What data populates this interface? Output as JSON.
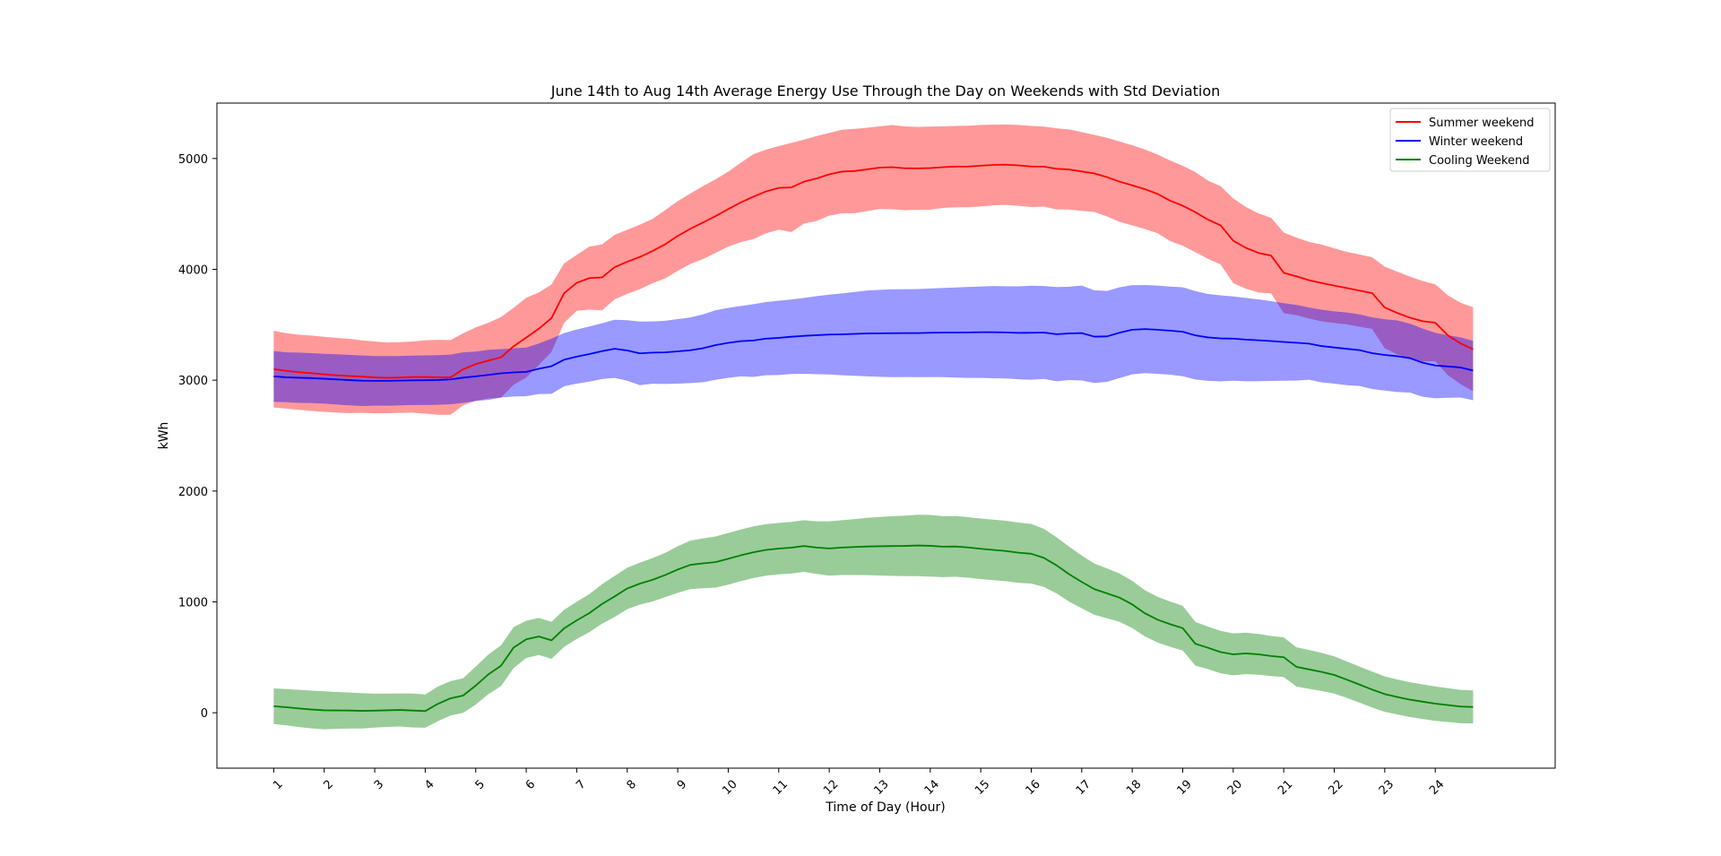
{
  "chart_data": {
    "type": "line",
    "title": "June 14th to Aug 14th Average Energy Use Through the Day on Weekends with Std Deviation",
    "xlabel": "Time of Day (Hour)",
    "ylabel": "kWh",
    "xlim": [
      -4.5,
      101.5
    ],
    "ylim": [
      -500,
      5500
    ],
    "grid": false,
    "legend_position": "top-right",
    "x_ticks": {
      "positions": [
        0,
        4,
        8,
        12,
        16,
        20,
        24,
        28,
        32,
        36,
        40,
        44,
        48,
        52,
        56,
        60,
        64,
        68,
        72,
        76,
        80,
        84,
        88,
        92
      ],
      "labels": [
        "1",
        "2",
        "3",
        "4",
        "5",
        "6",
        "7",
        "8",
        "9",
        "10",
        "11",
        "12",
        "13",
        "14",
        "15",
        "16",
        "17",
        "18",
        "19",
        "20",
        "21",
        "22",
        "23",
        "24"
      ]
    },
    "y_ticks": [
      0,
      1000,
      2000,
      3000,
      4000,
      5000
    ],
    "x": [
      0,
      1,
      2,
      3,
      4,
      5,
      6,
      7,
      8,
      9,
      10,
      11,
      12,
      13,
      14,
      15,
      16,
      17,
      18,
      19,
      20,
      21,
      22,
      23,
      24,
      25,
      26,
      27,
      28,
      29,
      30,
      31,
      32,
      33,
      34,
      35,
      36,
      37,
      38,
      39,
      40,
      41,
      42,
      43,
      44,
      45,
      46,
      47,
      48,
      49,
      50,
      51,
      52,
      53,
      54,
      55,
      56,
      57,
      58,
      59,
      60,
      61,
      62,
      63,
      64,
      65,
      66,
      67,
      68,
      69,
      70,
      71,
      72,
      73,
      74,
      75,
      76,
      77,
      78,
      79,
      80,
      81,
      82,
      83,
      84,
      85,
      86,
      87,
      88,
      89,
      90,
      91,
      92,
      93,
      94,
      95
    ],
    "series": [
      {
        "name": "Summer weekend",
        "color": "#ff0000",
        "band_color": "#ff0000",
        "values": [
          3100,
          3084,
          3072,
          3063,
          3053,
          3044,
          3038,
          3032,
          3025,
          3021,
          3024,
          3028,
          3029,
          3026,
          3025,
          3098,
          3145,
          3177,
          3206,
          3306,
          3384,
          3465,
          3560,
          3785,
          3878,
          3921,
          3927,
          4020,
          4068,
          4112,
          4165,
          4226,
          4301,
          4366,
          4422,
          4481,
          4543,
          4604,
          4656,
          4703,
          4735,
          4739,
          4791,
          4820,
          4857,
          4882,
          4887,
          4902,
          4918,
          4922,
          4912,
          4911,
          4914,
          4922,
          4927,
          4928,
          4935,
          4942,
          4944,
          4938,
          4928,
          4927,
          4907,
          4901,
          4883,
          4865,
          4832,
          4791,
          4758,
          4723,
          4681,
          4619,
          4574,
          4516,
          4448,
          4397,
          4258,
          4194,
          4148,
          4124,
          3969,
          3937,
          3902,
          3877,
          3853,
          3831,
          3808,
          3786,
          3656,
          3606,
          3564,
          3532,
          3519,
          3405,
          3332,
          3279
        ],
        "upper": [
          3446,
          3424,
          3411,
          3403,
          3392,
          3381,
          3373,
          3359,
          3349,
          3340,
          3343,
          3349,
          3360,
          3364,
          3362,
          3423,
          3476,
          3518,
          3569,
          3653,
          3743,
          3792,
          3864,
          4054,
          4130,
          4205,
          4224,
          4311,
          4357,
          4403,
          4455,
          4534,
          4616,
          4684,
          4751,
          4813,
          4881,
          4962,
          5039,
          5081,
          5112,
          5141,
          5170,
          5203,
          5230,
          5259,
          5268,
          5278,
          5291,
          5302,
          5290,
          5285,
          5289,
          5290,
          5294,
          5296,
          5303,
          5306,
          5307,
          5303,
          5294,
          5288,
          5273,
          5262,
          5238,
          5213,
          5187,
          5153,
          5120,
          5082,
          5036,
          4983,
          4935,
          4877,
          4801,
          4750,
          4640,
          4563,
          4505,
          4465,
          4333,
          4287,
          4248,
          4223,
          4190,
          4158,
          4134,
          4109,
          4024,
          3979,
          3934,
          3895,
          3866,
          3765,
          3699,
          3658
        ],
        "lower": [
          2754,
          2744,
          2733,
          2723,
          2714,
          2707,
          2703,
          2705,
          2701,
          2702,
          2705,
          2707,
          2698,
          2688,
          2688,
          2773,
          2814,
          2836,
          2843,
          2959,
          3025,
          3138,
          3256,
          3516,
          3626,
          3637,
          3630,
          3729,
          3779,
          3821,
          3875,
          3918,
          3986,
          4048,
          4093,
          4149,
          4205,
          4246,
          4273,
          4325,
          4358,
          4337,
          4412,
          4437,
          4484,
          4505,
          4506,
          4526,
          4545,
          4542,
          4534,
          4537,
          4539,
          4554,
          4560,
          4560,
          4567,
          4578,
          4581,
          4573,
          4562,
          4566,
          4541,
          4540,
          4528,
          4517,
          4477,
          4429,
          4396,
          4364,
          4326,
          4255,
          4213,
          4155,
          4095,
          4044,
          3876,
          3825,
          3791,
          3783,
          3605,
          3587,
          3556,
          3531,
          3516,
          3504,
          3482,
          3463,
          3288,
          3233,
          3194,
          3169,
          3172,
          3045,
          2965,
          2900
        ]
      },
      {
        "name": "Winter weekend",
        "color": "#0000ff",
        "band_color": "#0000ff",
        "values": [
          3034,
          3026,
          3022,
          3019,
          3013,
          3007,
          3001,
          2995,
          2994,
          2994,
          2996,
          2999,
          3000,
          3002,
          3007,
          3023,
          3035,
          3048,
          3062,
          3070,
          3075,
          3103,
          3126,
          3185,
          3213,
          3236,
          3262,
          3283,
          3268,
          3242,
          3249,
          3251,
          3260,
          3270,
          3288,
          3317,
          3337,
          3352,
          3358,
          3375,
          3382,
          3392,
          3400,
          3406,
          3412,
          3414,
          3418,
          3422,
          3423,
          3424,
          3425,
          3425,
          3428,
          3430,
          3430,
          3431,
          3433,
          3433,
          3431,
          3427,
          3428,
          3430,
          3415,
          3422,
          3425,
          3393,
          3395,
          3429,
          3455,
          3461,
          3455,
          3447,
          3437,
          3405,
          3386,
          3377,
          3375,
          3366,
          3360,
          3353,
          3345,
          3338,
          3330,
          3308,
          3295,
          3283,
          3271,
          3244,
          3228,
          3216,
          3199,
          3158,
          3133,
          3124,
          3115,
          3087
        ],
        "upper": [
          3263,
          3251,
          3249,
          3244,
          3238,
          3234,
          3229,
          3223,
          3218,
          3218,
          3219,
          3222,
          3224,
          3226,
          3231,
          3251,
          3258,
          3274,
          3280,
          3287,
          3294,
          3331,
          3375,
          3425,
          3457,
          3485,
          3514,
          3545,
          3541,
          3529,
          3530,
          3536,
          3551,
          3566,
          3594,
          3631,
          3652,
          3669,
          3686,
          3705,
          3717,
          3728,
          3742,
          3758,
          3772,
          3783,
          3796,
          3809,
          3815,
          3820,
          3821,
          3822,
          3827,
          3832,
          3836,
          3841,
          3845,
          3849,
          3847,
          3846,
          3852,
          3849,
          3840,
          3843,
          3853,
          3811,
          3805,
          3838,
          3857,
          3858,
          3853,
          3844,
          3838,
          3804,
          3778,
          3765,
          3755,
          3742,
          3729,
          3713,
          3695,
          3680,
          3656,
          3636,
          3621,
          3611,
          3594,
          3567,
          3550,
          3539,
          3510,
          3465,
          3428,
          3406,
          3386,
          3355
        ],
        "lower": [
          2805,
          2801,
          2795,
          2794,
          2788,
          2780,
          2773,
          2767,
          2770,
          2770,
          2773,
          2776,
          2776,
          2778,
          2783,
          2795,
          2812,
          2822,
          2844,
          2853,
          2856,
          2875,
          2877,
          2945,
          2969,
          2987,
          3010,
          3021,
          2995,
          2955,
          2968,
          2966,
          2969,
          2974,
          2982,
          3003,
          3022,
          3035,
          3030,
          3045,
          3047,
          3056,
          3058,
          3054,
          3052,
          3045,
          3040,
          3035,
          3031,
          3028,
          3029,
          3028,
          3029,
          3028,
          3024,
          3021,
          3021,
          3017,
          3015,
          3008,
          3004,
          3011,
          2990,
          3001,
          2997,
          2975,
          2985,
          3020,
          3053,
          3064,
          3057,
          3050,
          3036,
          3006,
          2994,
          2989,
          2995,
          2990,
          2991,
          2993,
          2995,
          2996,
          3004,
          2980,
          2969,
          2955,
          2948,
          2921,
          2906,
          2893,
          2888,
          2851,
          2838,
          2842,
          2844,
          2819
        ]
      },
      {
        "name": "Cooling Weekend",
        "color": "#008000",
        "band_color": "#008000",
        "values": [
          59,
          50,
          39,
          29,
          22,
          21,
          20,
          17,
          19,
          22,
          25,
          20,
          15,
          80,
          130,
          155,
          245,
          346,
          424,
          588,
          662,
          688,
          653,
          761,
          833,
          899,
          981,
          1049,
          1121,
          1165,
          1199,
          1242,
          1292,
          1334,
          1348,
          1359,
          1389,
          1420,
          1448,
          1469,
          1481,
          1489,
          1504,
          1490,
          1482,
          1490,
          1495,
          1500,
          1502,
          1504,
          1505,
          1509,
          1506,
          1498,
          1500,
          1491,
          1479,
          1469,
          1459,
          1444,
          1434,
          1397,
          1330,
          1250,
          1180,
          1115,
          1077,
          1038,
          977,
          897,
          840,
          799,
          763,
          622,
          586,
          547,
          527,
          535,
          527,
          512,
          501,
          414,
          391,
          368,
          341,
          298,
          254,
          209,
          168,
          142,
          118,
          100,
          82,
          69,
          56,
          52
        ],
        "upper": [
          220,
          214,
          207,
          199,
          193,
          187,
          182,
          176,
          172,
          172,
          174,
          173,
          165,
          236,
          285,
          311,
          417,
          525,
          608,
          773,
          830,
          855,
          820,
          928,
          1001,
          1071,
          1159,
          1234,
          1308,
          1354,
          1395,
          1442,
          1502,
          1553,
          1573,
          1590,
          1622,
          1653,
          1681,
          1702,
          1713,
          1722,
          1737,
          1727,
          1727,
          1737,
          1747,
          1758,
          1766,
          1773,
          1778,
          1786,
          1784,
          1773,
          1774,
          1764,
          1752,
          1742,
          1732,
          1716,
          1703,
          1659,
          1583,
          1498,
          1418,
          1346,
          1302,
          1256,
          1190,
          1105,
          1046,
          1003,
          965,
          819,
          778,
          738,
          716,
          722,
          711,
          693,
          680,
          591,
          566,
          540,
          509,
          462,
          417,
          371,
          328,
          300,
          275,
          256,
          237,
          222,
          207,
          201
        ],
        "lower": [
          -102,
          -114,
          -129,
          -141,
          -149,
          -145,
          -142,
          -142,
          -134,
          -128,
          -124,
          -133,
          -135,
          -76,
          -25,
          -1,
          73,
          167,
          240,
          403,
          494,
          521,
          486,
          594,
          665,
          727,
          803,
          864,
          934,
          976,
          1003,
          1042,
          1082,
          1115,
          1123,
          1128,
          1156,
          1187,
          1215,
          1236,
          1249,
          1256,
          1271,
          1253,
          1237,
          1243,
          1243,
          1242,
          1238,
          1235,
          1232,
          1232,
          1228,
          1223,
          1226,
          1218,
          1206,
          1196,
          1186,
          1172,
          1165,
          1135,
          1077,
          1002,
          942,
          884,
          852,
          820,
          764,
          689,
          634,
          595,
          561,
          425,
          394,
          356,
          338,
          348,
          343,
          331,
          322,
          237,
          216,
          196,
          173,
          134,
          91,
          47,
          8,
          -16,
          -39,
          -56,
          -73,
          -84,
          -95,
          -97
        ]
      }
    ]
  }
}
